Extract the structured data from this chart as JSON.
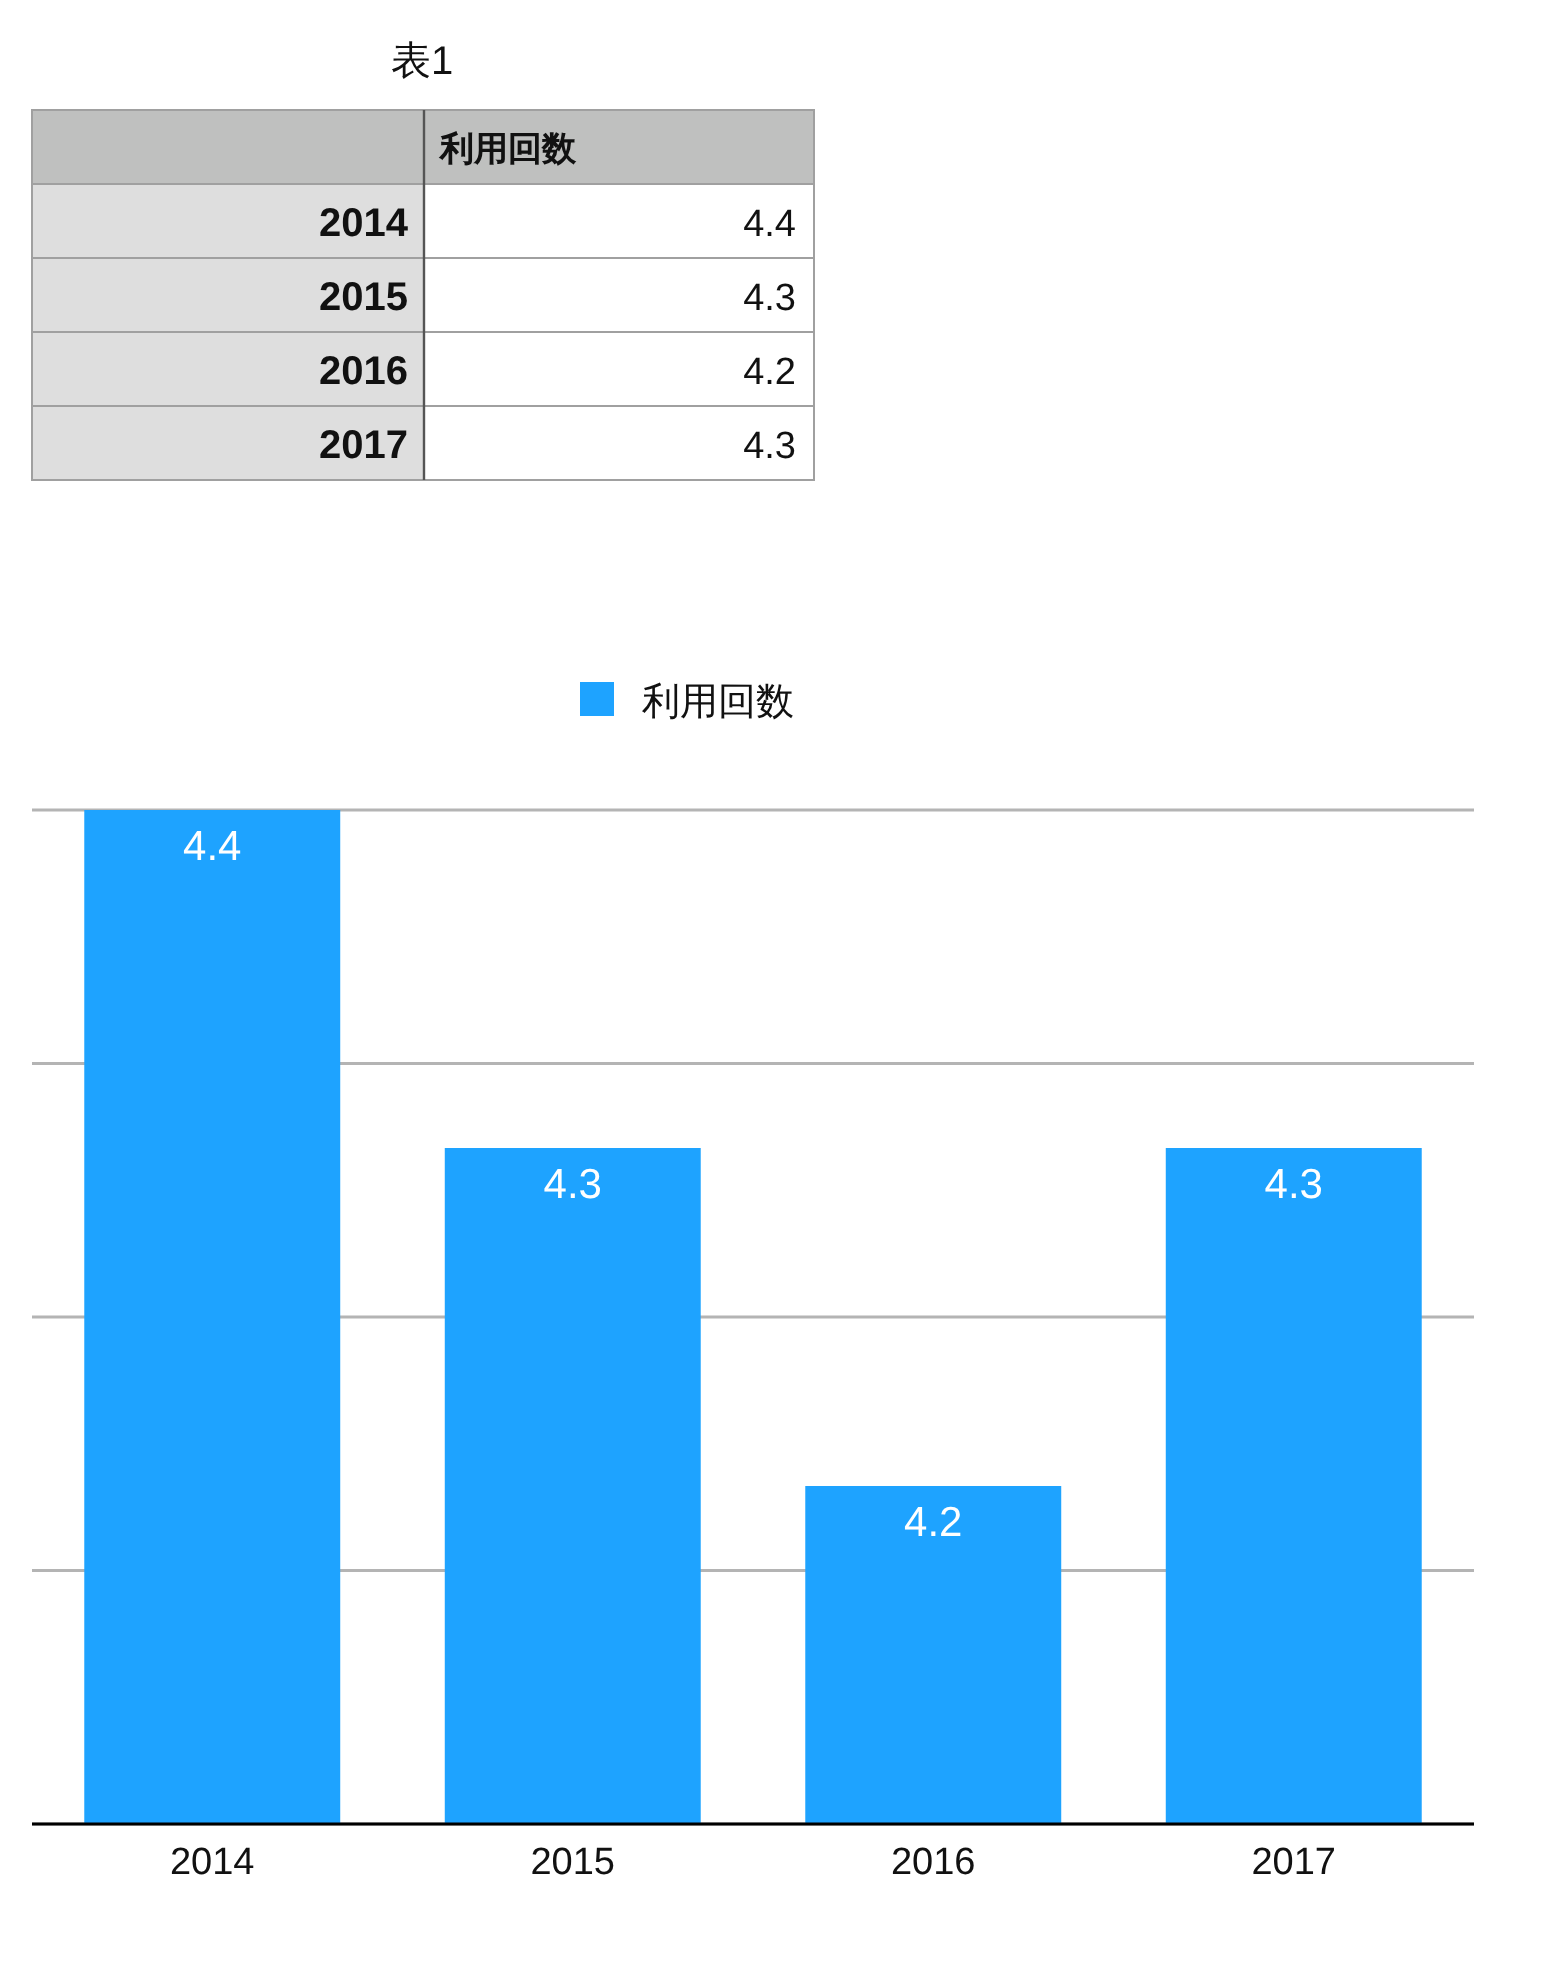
{
  "chart_data": {
    "type": "bar",
    "title": "表1",
    "categories": [
      "2014",
      "2015",
      "2016",
      "2017"
    ],
    "series": [
      {
        "name": "利用回数",
        "color": "#1ea3ff",
        "values": [
          4.4,
          4.3,
          4.2,
          4.3
        ]
      }
    ],
    "annotations": [
      "4.4",
      "4.3",
      "4.2",
      "4.3"
    ],
    "ylim": [
      4.1,
      4.4
    ],
    "yticks": [
      {
        "value": 4.1,
        "label": null
      },
      {
        "value": 4.175,
        "label": null
      },
      {
        "value": 4.25,
        "label": null
      },
      {
        "value": 4.325,
        "label": null
      },
      {
        "value": 4.4,
        "label": null
      }
    ],
    "tick_labels": "x",
    "grid": "y",
    "legend": "top",
    "data_labels": true
  }
}
